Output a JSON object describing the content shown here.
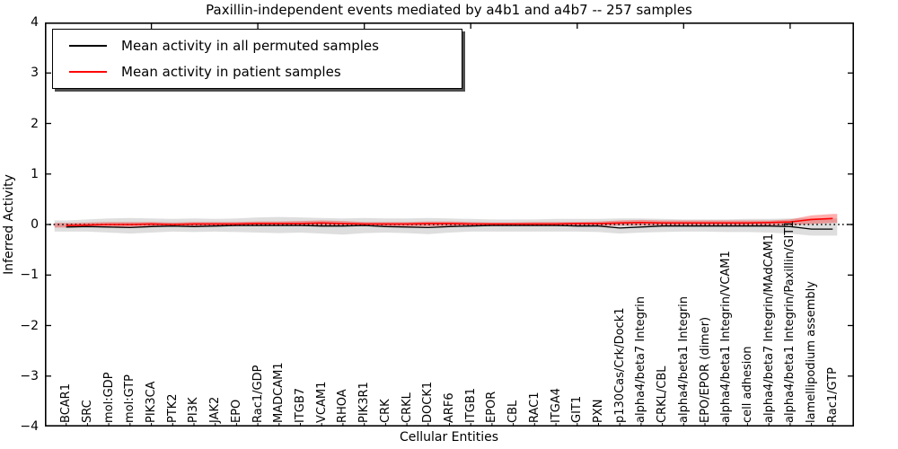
{
  "chart_data": {
    "type": "line",
    "title": "Paxillin-independent events mediated by a4b1 and a4b7 -- 257 samples",
    "xlabel": "Cellular Entities",
    "ylabel": "Inferred Activity",
    "ylim": [
      -4,
      4
    ],
    "yticks": [
      -4,
      -3,
      -2,
      -1,
      0,
      1,
      2,
      3,
      4
    ],
    "xlim": [
      0,
      38
    ],
    "top_axis_ticks": [
      5,
      10,
      15,
      20,
      25,
      30,
      35
    ],
    "grid": false,
    "legend_position": "upper left",
    "zero_line": {
      "y": 0,
      "style": "dotted",
      "color": "#000000"
    },
    "categories": [
      "BCAR1",
      "SRC",
      "mol:GDP",
      "mol:GTP",
      "PIK3CA",
      "PTK2",
      "PI3K",
      "JAK2",
      "EPO",
      "Rac1/GDP",
      "MADCAM1",
      "ITGB7",
      "VCAM1",
      "RHOA",
      "PIK3R1",
      "CRK",
      "CRKL",
      "DOCK1",
      "ARF6",
      "ITGB1",
      "EPOR",
      "CBL",
      "RAC1",
      "ITGA4",
      "GIT1",
      "PXN",
      "p130Cas/Crk/Dock1",
      "alpha4/beta7 Integrin",
      "CRKL/CBL",
      "alpha4/beta1 Integrin",
      "EPO/EPOR (dimer)",
      "alpha4/beta1 Integrin/VCAM1",
      "cell adhesion",
      "alpha4/beta7 Integrin/MAdCAM1",
      "alpha4/beta1 Integrin/Paxillin/GIT1",
      "lamellipodium assembly",
      "Rac1/GTP"
    ],
    "series": [
      {
        "name": "Mean activity in all permuted samples",
        "color": "#000000",
        "values": [
          -0.05,
          -0.04,
          -0.05,
          -0.06,
          -0.04,
          -0.03,
          -0.04,
          -0.03,
          -0.02,
          -0.02,
          -0.02,
          -0.02,
          -0.03,
          -0.03,
          -0.02,
          -0.04,
          -0.05,
          -0.06,
          -0.04,
          -0.03,
          -0.02,
          -0.02,
          -0.02,
          -0.02,
          -0.03,
          -0.03,
          -0.07,
          -0.05,
          -0.03,
          -0.03,
          -0.03,
          -0.03,
          -0.03,
          -0.03,
          -0.04,
          -0.09,
          -0.09
        ]
      },
      {
        "name": "Mean activity in patient samples",
        "color": "#ff0000",
        "values": [
          -0.02,
          -0.01,
          0,
          0,
          0.01,
          0,
          0.01,
          0.01,
          0.01,
          0.02,
          0.02,
          0.02,
          0.03,
          0.02,
          0.01,
          0.01,
          0.01,
          0.02,
          0.02,
          0.01,
          0.01,
          0.01,
          0.01,
          0.01,
          0.02,
          0.02,
          0.03,
          0.04,
          0.03,
          0.03,
          0.03,
          0.03,
          0.03,
          0.04,
          0.05,
          0.1,
          0.12
        ]
      }
    ],
    "bands": [
      {
        "name": "permuted-samples-band",
        "color": "rgba(0,0,0,0.13)",
        "upper": [
          0.08,
          0.1,
          0.12,
          0.13,
          0.12,
          0.11,
          0.12,
          0.11,
          0.12,
          0.14,
          0.15,
          0.14,
          0.13,
          0.12,
          0.13,
          0.12,
          0.12,
          0.13,
          0.12,
          0.11,
          0.1,
          0.1,
          0.1,
          0.11,
          0.11,
          0.11,
          0.12,
          0.12,
          0.11,
          0.1,
          0.1,
          0.1,
          0.11,
          0.11,
          0.12,
          0.12,
          0.12
        ],
        "lower": [
          -0.14,
          -0.14,
          -0.16,
          -0.18,
          -0.16,
          -0.14,
          -0.15,
          -0.14,
          -0.15,
          -0.16,
          -0.17,
          -0.16,
          -0.18,
          -0.2,
          -0.17,
          -0.16,
          -0.17,
          -0.19,
          -0.16,
          -0.14,
          -0.14,
          -0.14,
          -0.14,
          -0.14,
          -0.14,
          -0.15,
          -0.18,
          -0.16,
          -0.15,
          -0.14,
          -0.14,
          -0.15,
          -0.15,
          -0.16,
          -0.18,
          -0.22,
          -0.22
        ]
      },
      {
        "name": "patient-samples-band",
        "color": "rgba(255,0,0,0.32)",
        "upper": [
          0.03,
          0.04,
          0.05,
          0.05,
          0.05,
          0.04,
          0.05,
          0.05,
          0.05,
          0.06,
          0.06,
          0.07,
          0.08,
          0.07,
          0.05,
          0.05,
          0.05,
          0.06,
          0.06,
          0.05,
          0.04,
          0.04,
          0.05,
          0.05,
          0.05,
          0.06,
          0.08,
          0.09,
          0.08,
          0.08,
          0.08,
          0.08,
          0.08,
          0.08,
          0.1,
          0.18,
          0.21
        ],
        "lower": [
          -0.06,
          -0.05,
          -0.05,
          -0.05,
          -0.04,
          -0.04,
          -0.04,
          -0.04,
          -0.03,
          -0.03,
          -0.03,
          -0.03,
          -0.02,
          -0.03,
          -0.03,
          -0.04,
          -0.04,
          -0.04,
          -0.03,
          -0.03,
          -0.03,
          -0.03,
          -0.03,
          -0.03,
          -0.03,
          -0.03,
          -0.02,
          -0.02,
          -0.02,
          -0.02,
          -0.02,
          -0.02,
          -0.02,
          -0.02,
          -0.01,
          0.01,
          0.03
        ]
      }
    ]
  }
}
